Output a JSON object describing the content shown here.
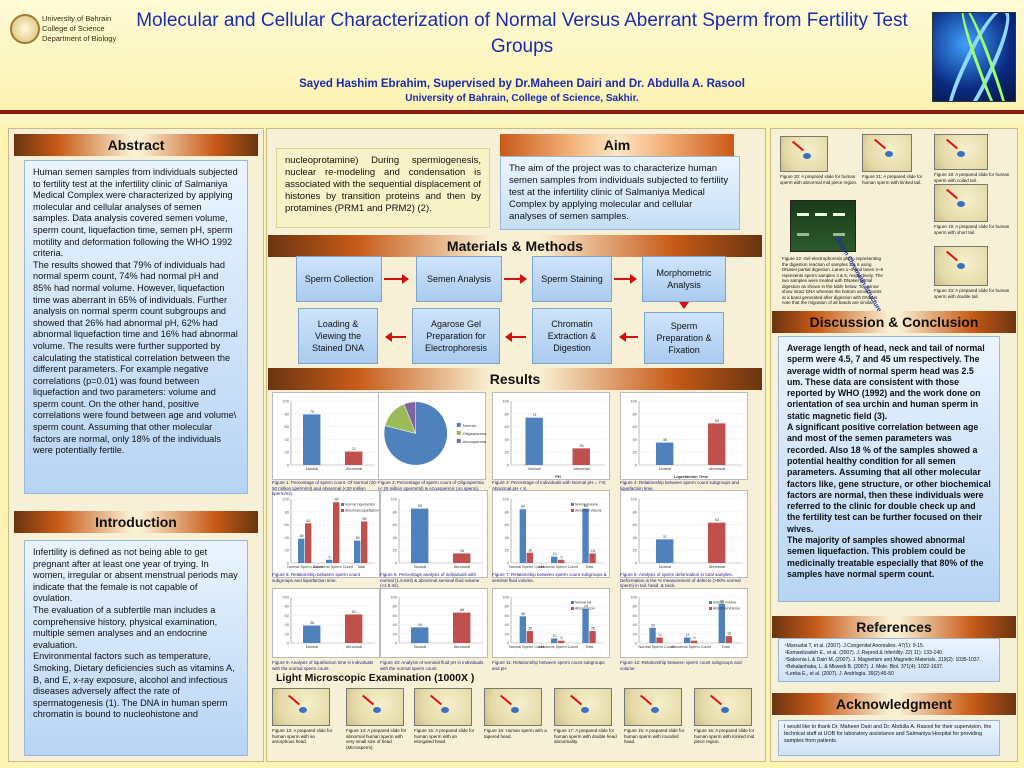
{
  "header": {
    "university_lines": [
      "University of Bahrain",
      "College of Science",
      "Department of Biology"
    ],
    "title": "Molecular and Cellular Characterization of Normal Versus Aberrant Sperm from Fertility Test Groups",
    "authors": "Sayed Hashim Ebrahim, Supervised by Dr.Maheen Dairi and Dr. Abdulla A. Rasool",
    "affiliation": "University of Bahrain, College of Science, Sakhir."
  },
  "abstract": {
    "heading": "Abstract",
    "text": "Human semen samples from individuals subjected to fertility test at the infertility clinic of Salmaniya Medical Complex were characterized by applying molecular and cellular analyses of semen samples. Data analysis covered semen volume, sperm count, liquefaction time, semen pH, sperm motility and deformation following the WHO 1992 criteria.\nThe results showed that 79% of individuals had normal sperm count, 74% had normal pH and 85% had normal volume. However, liquefaction time was aberrant in 65% of individuals.  Further analysis on normal sperm count subgroups and showed that 26% had abnormal pH, 62% had abnormal liquefaction time and 16% had abnormal volume. The results were further supported by calculating the statistical correlation between the different parameters. For example negative correlations (p=0.01) was found between liquefaction and two parameters: volume and sperm count. On the other hand, positive correlations were found between age and volume\\ sperm count. Assuming that other molecular factors are normal, only 18% of the individuals were potentially fertile."
  },
  "introduction": {
    "heading": "Introduction",
    "text": "Infertility is defined as not being able to get pregnant after at least one year of trying. In women, irregular or absent menstrual periods may indicate that the female is not capable of ovulation.\nThe evaluation of a subfertile man includes a comprehensive history, physical examination, multiple semen analyses and an endocrine evaluation.\nEnvironmental factors such as temperature, Smoking, Dietary deficiencies such as vitamins A, B, and E, x-ray exposure, alcohol and infectious diseases adversely affect the rate of spermatogenesis (1). The DNA in human sperm chromatin is bound to nucleohistone and"
  },
  "intro_continued": "nucleoprotamine) During spermiogenesis, nuclear re-modeling and condensation is associated with the sequential displacement of histones by transition proteins and then by protamines (PRM1 and PRM2) (2).",
  "aim": {
    "heading": "Aim",
    "text": "The aim of the project was to characterize human semen samples from individuals subjected to fertility test at the infertility clinic of Salmaniya Medical Complex by applying molecular and cellular analyses of semen samples."
  },
  "methods": {
    "heading": "Materials & Methods",
    "row1": [
      "Sperm Collection",
      "Semen Analysis",
      "Sperm Staining",
      "Morphometric Analysis"
    ],
    "row2": [
      "Loading & Viewing the Stained DNA",
      "Agarose Gel Preparation for Electrophoresis",
      "Chromatin Extraction & Digestion",
      "Sperm Preparation & Fixation"
    ]
  },
  "results": {
    "heading": "Results",
    "captions": [
      "Figure 1: Percentage of sperm count. Of Normal (20-50 million sperm/ml) and Abnormal (<20 million sperm/ml).",
      "Figure 2: Percentage of sperm count of Oligospermia (< 20 million sperm/ml) & Azoospermic (no sperm).",
      "Figure 3: Percentage of individuals with Normal pH = 7-8; Abnormal pH < 8.",
      "Figure 4: Relationship between sperm count subgroups and liquefaction time.",
      "Figure 5: Relationship between sperm count subgroups and liquefaction time.",
      "Figure 6: Percentage analysis of individuals with normal (1.5-6ml) & abnormal seminal fluid volume (<1.5 ml).",
      "Figure 7: Relationship between sperm count subgroups & seminal fluid volume.",
      "Figure 8: Analysis of sperm deformation in total samples. Deformation is the % measurement of defects (>60% normal sperm) in tail, head, & neck.",
      "Figure 9: Analysis of liquefaction time in individuals with the normal sperm count.",
      "Figure 10: Analysis of seminal fluid pH in individuals with the normal sperm count.",
      "Figure 11: Relationship between sperm count subgroups and pH",
      "Figure 12: Relationship between sperm count subgroups and volume"
    ],
    "micro_heading": "Light Microscopic Examination (1000X )",
    "micro_captions": [
      "Figure 13: A prepared slide for human sperm with an amorphous head.",
      "Figure 14: A prepared slide for abnormal human sperm with very small size of head (Microsperm).",
      "Figure 15: A prepared slide for human sperm with an elongated head.",
      "Figure 16: Human sperm with a tapered head.",
      "Figure 17: A prepared slide for human sperm with double head abnormality.",
      "Figure 15: A prepared slide for human sperm with rounded head.",
      "Figure 16: A prepared slide for human sperm with Kinked mid piece region."
    ]
  },
  "chart_data": [
    {
      "type": "bar",
      "title": "",
      "categories": [
        "Normal",
        "Abnormal"
      ],
      "values": [
        79,
        21
      ],
      "ylim": [
        0,
        100
      ]
    },
    {
      "type": "pie",
      "title": "",
      "categories": [
        "Normal",
        "Oligospermia",
        "Azoospermia"
      ],
      "values": [
        79,
        15,
        6
      ]
    },
    {
      "type": "bar",
      "title": "",
      "categories": [
        "Normal",
        "Abnormal"
      ],
      "values": [
        74,
        26
      ],
      "ylim": [
        0,
        100
      ],
      "xlabel": "PH"
    },
    {
      "type": "bar",
      "title": "",
      "categories": [
        "Normal",
        "Abnormal"
      ],
      "values": [
        35,
        65
      ],
      "ylim": [
        0,
        100
      ],
      "xlabel": "Liquefaction Time"
    },
    {
      "type": "bar",
      "title": "",
      "categories": [
        "Normal Sperm Count",
        "Abnormal Sperm Count",
        "Total"
      ],
      "series": [
        {
          "name": "Normal Liquefaction",
          "values": [
            38,
            5,
            35
          ]
        },
        {
          "name": "Abnormal Liquefaction",
          "values": [
            62,
            95,
            65
          ]
        }
      ],
      "ylim": [
        0,
        100
      ]
    },
    {
      "type": "bar",
      "title": "",
      "categories": [
        "Normal",
        "Abnormal"
      ],
      "values": [
        85,
        15
      ],
      "ylim": [
        0,
        100
      ]
    },
    {
      "type": "bar",
      "title": "",
      "categories": [
        "Normal Sperm Count",
        "Abnormal Sperm Count",
        "Total"
      ],
      "series": [
        {
          "name": "Normal Volume",
          "values": [
            84,
            10,
            85
          ]
        },
        {
          "name": "Abnormal Volume",
          "values": [
            16,
            5,
            15
          ]
        }
      ],
      "ylim": [
        0,
        100
      ]
    },
    {
      "type": "bar",
      "title": "",
      "categories": [
        "Normal",
        "Abnormal"
      ],
      "values": [
        37,
        63
      ],
      "ylim": [
        0,
        100
      ]
    },
    {
      "type": "bar",
      "title": "",
      "categories": [
        "Normal",
        "Abnormal"
      ],
      "values": [
        38,
        62
      ],
      "ylim": [
        0,
        100
      ]
    },
    {
      "type": "bar",
      "title": "",
      "categories": [
        "Normal",
        "Abnormal"
      ],
      "values": [
        34,
        66
      ],
      "ylim": [
        0,
        100
      ]
    },
    {
      "type": "bar",
      "title": "",
      "categories": [
        "Normal Sperm Count",
        "Abnormal Sperm Count",
        "Total"
      ],
      "series": [
        {
          "name": "Normal pH",
          "values": [
            58,
            10,
            74
          ]
        },
        {
          "name": "Abnormal pH",
          "values": [
            26,
            5,
            26
          ]
        }
      ],
      "ylim": [
        0,
        100
      ]
    },
    {
      "type": "bar",
      "title": "",
      "categories": [
        "Normal Sperm Count",
        "Abnormal Sperm Count",
        "Total"
      ],
      "series": [
        {
          "name": "Normal Volume",
          "values": [
            33,
            12,
            85
          ]
        },
        {
          "name": "Abnormal Volume",
          "values": [
            12,
            5,
            15
          ]
        }
      ],
      "ylim": [
        0,
        100
      ]
    }
  ],
  "right_figures": {
    "captions": [
      "Figure 20: A prepared slide for human sperm with abnormal mid piece region.",
      "Figure 21: A prepared slide for human sperm with kinked tail.",
      "Figure 18: A prepared slide for human sperm with coiled tail.",
      "Figure 19: A prepared slide for human sperm with short tail.",
      "Figure 22: Gel electrophoresis photo representing the digestion reaction of samples 3 & 6 using DNaseI partial digestion. Lanes 1~3 and lanes 4~6 represents sperm samples 3 & 6, respectively. The two samples were treated with DNaseI partial digestion as shown in the table below. Top arrow show intact DNA whereas the bottom arrow points at a band generated after digestion with DNaseI. note that the migration of all bands are similar.",
      "Figure 23: A prepared slide for human sperm with double tail."
    ],
    "gel_label": "Sperm Chromatin Structure Assay"
  },
  "discussion": {
    "heading": "Discussion & Conclusion",
    "text": "Average length of head, neck and tail of normal sperm were 4.5, 7 and 45 um respectively. The average width of normal sperm head was 2.5 um. These data are consistent with those reported by WHO (1992) and the work done on orientation of sea urchin and human sperm in static magnetic field (3).\nA significant positive correlation between age and most of the semen parameters was recorded. Also 18 % of the samples showed a potential healthy condition for all semen parameters. Assuming that all other molecular factors like, gene structure, or other biochemical factors are normal, then these individuals were referred to the clinic for double check up and the fertility test can be further focused on their wives.\nThe majority of samples showed abnormal semen liquefaction. This problem could be medicinally treatable especially that 80% of the samples have normal sperm count."
  },
  "references": {
    "heading": "References",
    "items": [
      "¹Marsudai T, et al. (2007). J.Congenital Anomalies. 47(1): 9-15.",
      "²Esmaeilzadeh E., et al. (2007). J. Reprod.& Infertility. 22( 11): 133-140.",
      "³Sabrenia L & Dairi M. (2007). J. Magnetism and Magnetic Materials. 319(2): 1035-1037.",
      "⁴Bekalanhaka, L. & Mkwedi B. (2007). J. Mole. Biol. 371(4): 1022-1637.",
      "⁵Lenka E., et al. (2007). J. Andrlogia. 39(2):45-50"
    ]
  },
  "acknowledgment": {
    "heading": "Acknowledgment",
    "text": "I would like to thank Dr. Maheen Dairi and Dr. Abdulla A. Rasool for their supervision, the technical staff at UOB for laboratory assistance and Salmaniya Hospital for providing samples from patients."
  }
}
